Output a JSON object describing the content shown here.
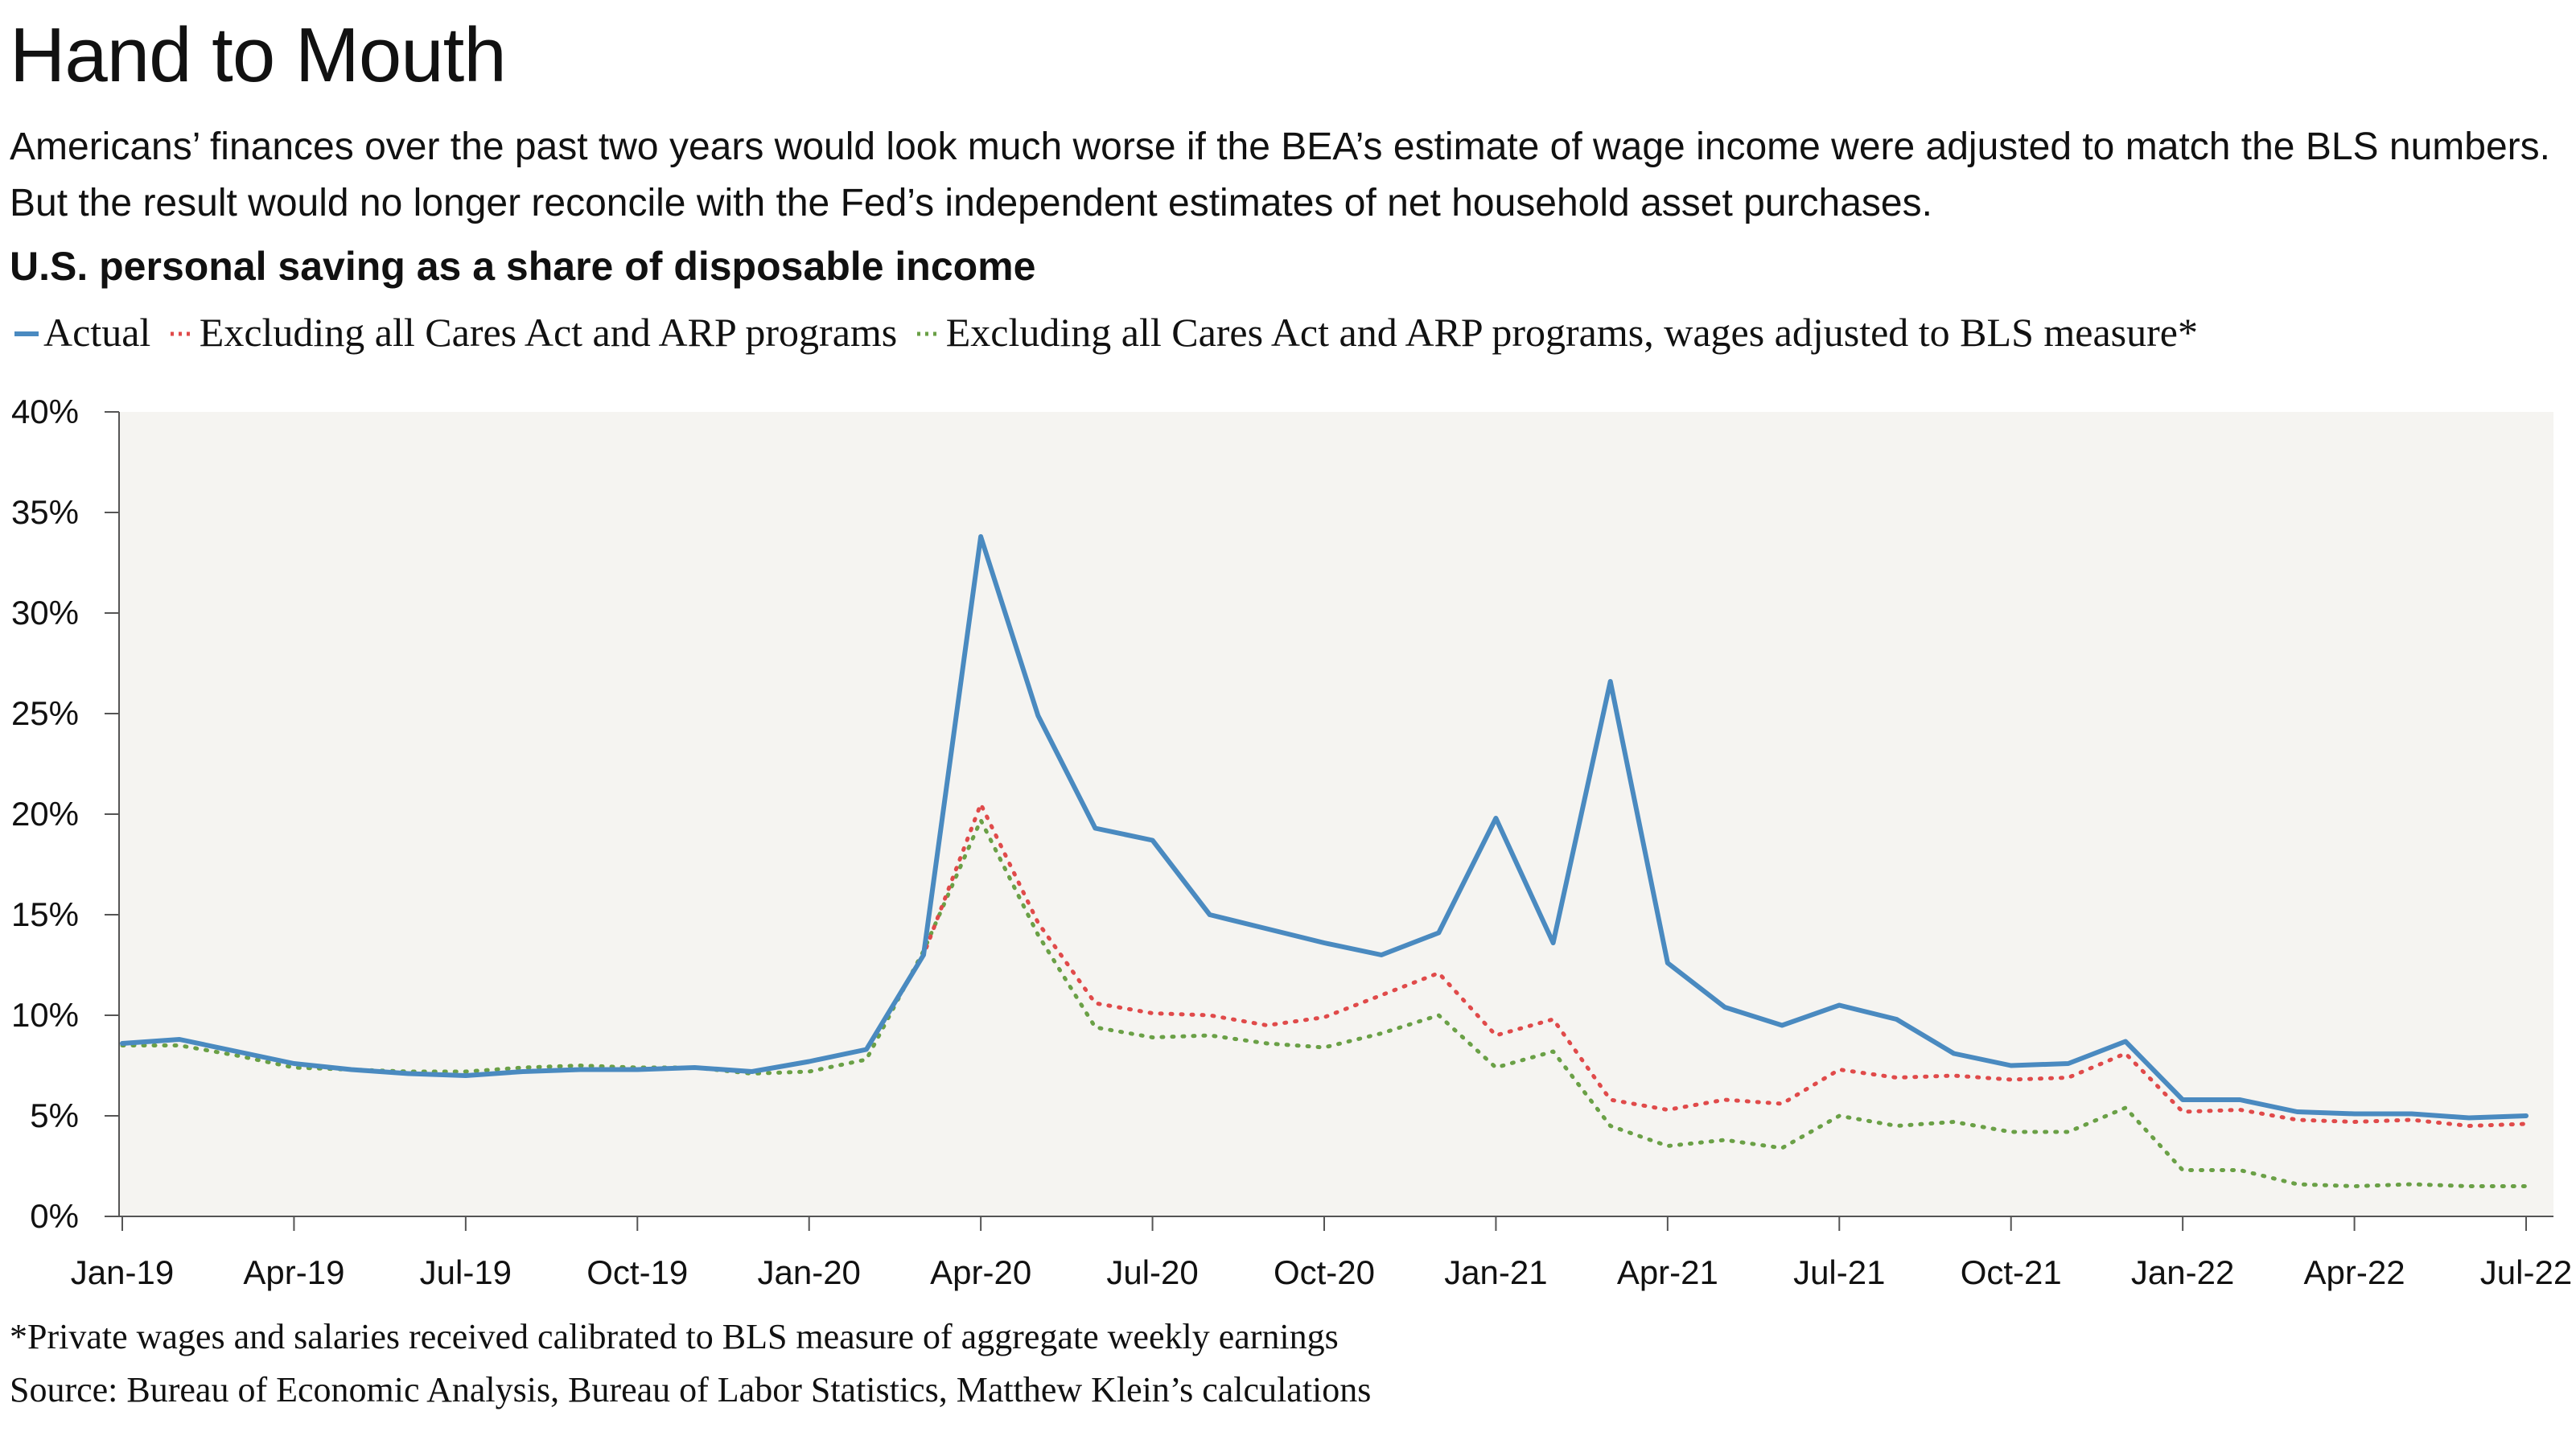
{
  "header": {
    "title": "Hand to Mouth",
    "subtitle": "Americans’ finances over the past two years would look much worse if the BEA’s estimate of wage income were adjusted to match the BLS numbers. But the result would no longer reconcile with the Fed’s independent estimates of net household asset purchases."
  },
  "footer": {
    "note": "*Private wages and salaries received calibrated to BLS measure of aggregate weekly earnings",
    "source": "Source: Bureau of Economic Analysis, Bureau of Labor Statistics, Matthew Klein’s calculations"
  },
  "colors": {
    "actual": "#4a8ac0",
    "excluding": "#e04a4a",
    "adjusted": "#6aa046",
    "plot_bg": "#f5f4f1",
    "axis": "#555555"
  },
  "chart_data": {
    "type": "line",
    "title": "U.S. personal saving as a share of disposable income",
    "xlabel": "",
    "ylabel": "",
    "ylim": [
      0,
      40
    ],
    "yticks": [
      "0%",
      "5%",
      "10%",
      "15%",
      "20%",
      "25%",
      "30%",
      "35%",
      "40%"
    ],
    "xticks": [
      "Jan-19",
      "Apr-19",
      "Jul-19",
      "Oct-19",
      "Jan-20",
      "Apr-20",
      "Jul-20",
      "Oct-20",
      "Jan-21",
      "Apr-21",
      "Jul-21",
      "Oct-21",
      "Jan-22",
      "Apr-22",
      "Jul-22"
    ],
    "grid": false,
    "legend_position": "top-left",
    "x": [
      "Jan-19",
      "Feb-19",
      "Mar-19",
      "Apr-19",
      "May-19",
      "Jun-19",
      "Jul-19",
      "Aug-19",
      "Sep-19",
      "Oct-19",
      "Nov-19",
      "Dec-19",
      "Jan-20",
      "Feb-20",
      "Mar-20",
      "Apr-20",
      "May-20",
      "Jun-20",
      "Jul-20",
      "Aug-20",
      "Sep-20",
      "Oct-20",
      "Nov-20",
      "Dec-20",
      "Jan-21",
      "Feb-21",
      "Mar-21",
      "Apr-21",
      "May-21",
      "Jun-21",
      "Jul-21",
      "Aug-21",
      "Sep-21",
      "Oct-21",
      "Nov-21",
      "Dec-21",
      "Jan-22",
      "Feb-22",
      "Mar-22",
      "Apr-22",
      "May-22",
      "Jun-22",
      "Jul-22"
    ],
    "series": [
      {
        "name": "Actual",
        "style": "solid",
        "values": [
          8.6,
          8.8,
          8.2,
          7.6,
          7.3,
          7.1,
          7.0,
          7.2,
          7.3,
          7.3,
          7.4,
          7.2,
          7.7,
          8.3,
          13.0,
          33.8,
          24.9,
          19.3,
          18.7,
          15.0,
          14.3,
          13.6,
          13.0,
          14.1,
          19.8,
          13.6,
          26.6,
          12.6,
          10.4,
          9.5,
          10.5,
          9.8,
          8.1,
          7.5,
          7.6,
          8.7,
          5.8,
          5.8,
          5.2,
          5.1,
          5.1,
          4.9,
          5.0
        ]
      },
      {
        "name": "Excluding all Cares Act and ARP programs",
        "style": "dotted",
        "values": [
          8.6,
          8.8,
          8.2,
          7.6,
          7.3,
          7.1,
          7.0,
          7.2,
          7.3,
          7.3,
          7.4,
          7.2,
          7.7,
          8.3,
          13.0,
          20.5,
          14.6,
          10.6,
          10.1,
          10.0,
          9.5,
          9.9,
          11.0,
          12.1,
          9.0,
          9.8,
          5.8,
          5.3,
          5.8,
          5.6,
          7.3,
          6.9,
          7.0,
          6.8,
          6.9,
          8.1,
          5.2,
          5.3,
          4.8,
          4.7,
          4.8,
          4.5,
          4.6
        ]
      },
      {
        "name": "Excluding all Cares Act and ARP programs, wages adjusted to BLS measure*",
        "style": "dotted",
        "values": [
          8.5,
          8.5,
          8.0,
          7.4,
          7.3,
          7.2,
          7.2,
          7.4,
          7.5,
          7.4,
          7.4,
          7.1,
          7.2,
          7.8,
          13.2,
          19.7,
          14.0,
          9.4,
          8.9,
          9.0,
          8.6,
          8.4,
          9.1,
          10.0,
          7.4,
          8.2,
          4.5,
          3.5,
          3.8,
          3.4,
          5.0,
          4.5,
          4.7,
          4.2,
          4.2,
          5.4,
          2.3,
          2.3,
          1.6,
          1.5,
          1.6,
          1.5,
          1.5
        ]
      }
    ]
  }
}
